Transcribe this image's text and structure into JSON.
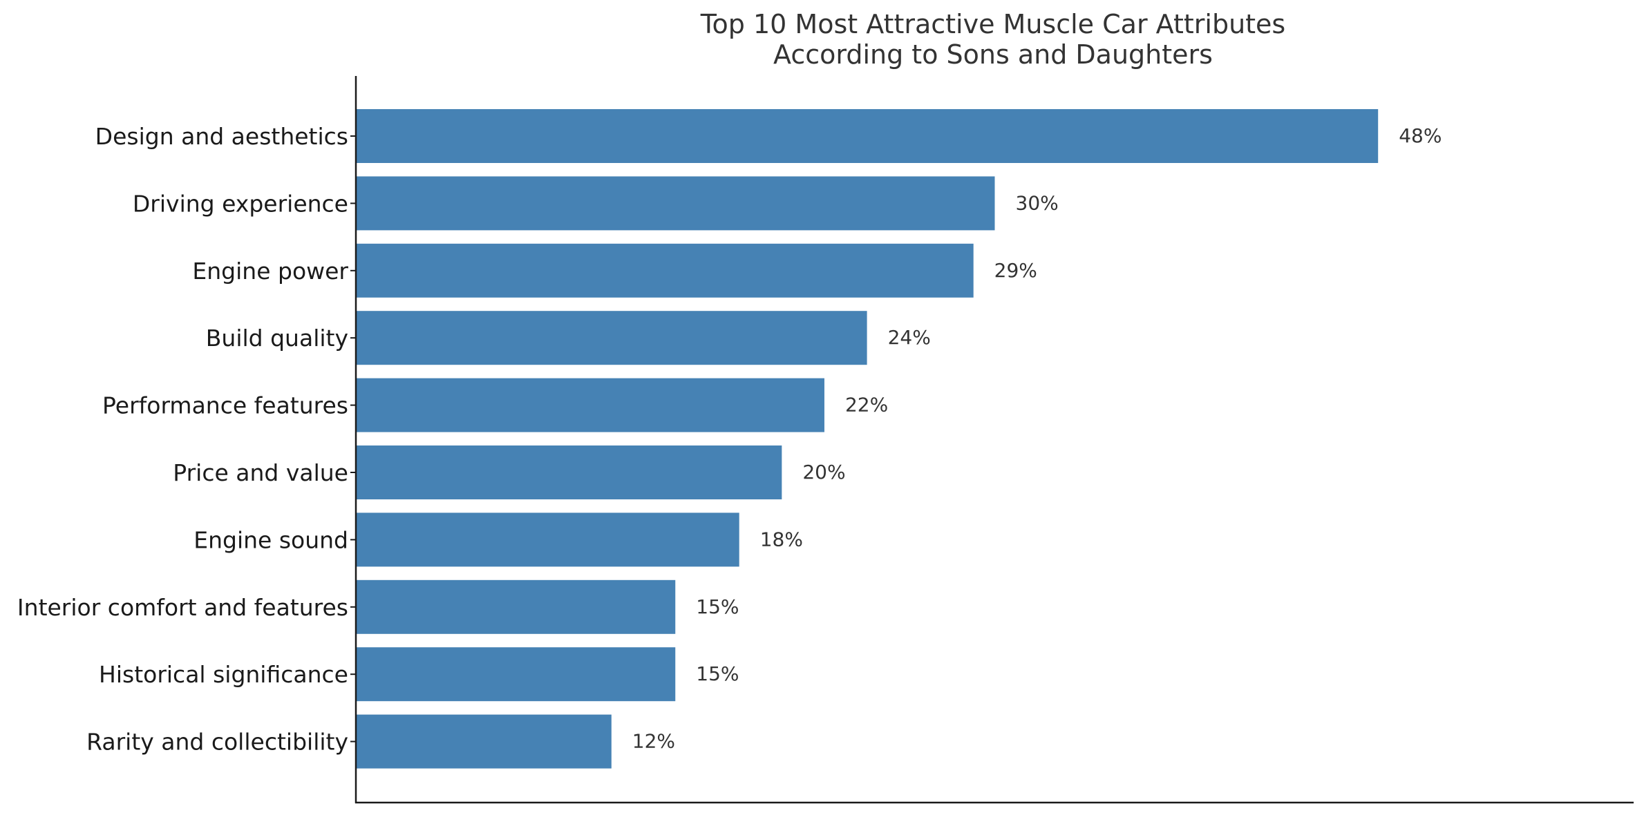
{
  "chart_data": {
    "type": "bar",
    "orientation": "horizontal",
    "title_lines": [
      "Top 10 Most Attractive Muscle Car Attributes",
      "According to Sons and Daughters"
    ],
    "xlabel": "",
    "ylabel": "",
    "categories": [
      "Design and aesthetics",
      "Driving experience",
      "Engine power",
      "Build quality",
      "Performance features",
      "Price and value",
      "Engine sound",
      "Interior comfort and features",
      "Historical significance",
      "Rarity and collectibility"
    ],
    "values": [
      48,
      30,
      29,
      24,
      22,
      20,
      18,
      15,
      15,
      12
    ],
    "data_labels": [
      "48%",
      "30%",
      "29%",
      "24%",
      "22%",
      "20%",
      "18%",
      "15%",
      "15%",
      "12%"
    ],
    "xlim": [
      0,
      60
    ],
    "grid": false,
    "legend": "none",
    "bar_color": "#4682b4",
    "axis_color": "#1a1a1a",
    "text_color": "#333333"
  }
}
